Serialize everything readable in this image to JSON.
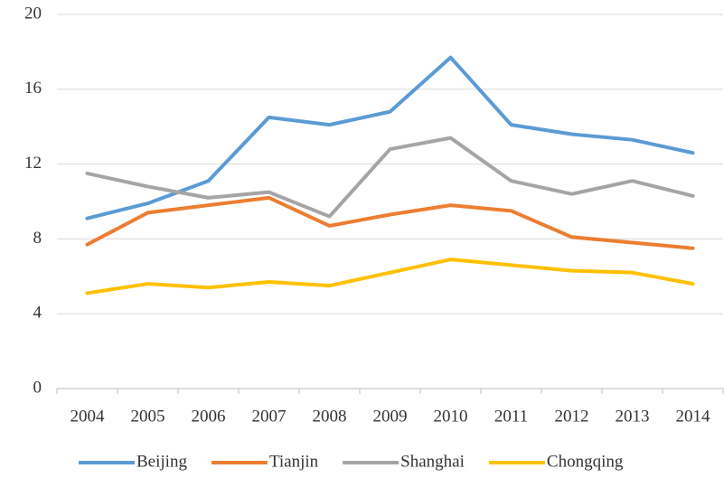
{
  "chart_data": {
    "type": "line",
    "categories": [
      "2004",
      "2005",
      "2006",
      "2007",
      "2008",
      "2009",
      "2010",
      "2011",
      "2012",
      "2013",
      "2014"
    ],
    "series": [
      {
        "name": "Beijing",
        "color": "#5b9bd5",
        "values": [
          9.1,
          9.9,
          11.1,
          14.5,
          14.1,
          14.8,
          17.7,
          14.1,
          13.6,
          13.3,
          12.6
        ]
      },
      {
        "name": "Tianjin",
        "color": "#ed7d31",
        "values": [
          7.7,
          9.4,
          9.8,
          10.2,
          8.7,
          9.3,
          9.8,
          9.5,
          8.1,
          7.8,
          7.5
        ]
      },
      {
        "name": "Shanghai",
        "color": "#a5a5a5",
        "values": [
          11.5,
          10.8,
          10.2,
          10.5,
          9.2,
          12.8,
          13.4,
          11.1,
          10.4,
          11.1,
          10.3
        ]
      },
      {
        "name": "Chongqing",
        "color": "#ffc000",
        "values": [
          5.1,
          5.6,
          5.4,
          5.7,
          5.5,
          6.2,
          6.9,
          6.6,
          6.3,
          6.2,
          5.6
        ]
      }
    ],
    "ylim": [
      0,
      20
    ],
    "yticks": [
      0,
      4,
      8,
      12,
      16,
      20
    ],
    "grid": true,
    "legend": "bottom"
  }
}
